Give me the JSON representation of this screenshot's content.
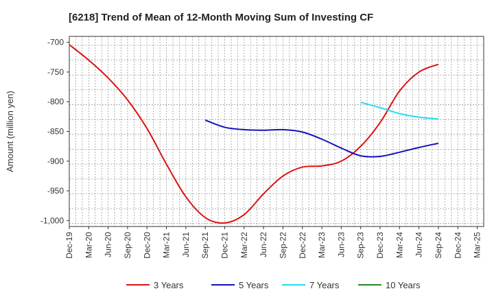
{
  "chart_data": {
    "type": "line",
    "title": "[6218]  Trend of Mean of 12-Month Moving Sum of Investing CF",
    "xlabel": "",
    "ylabel": "Amount (million yen)",
    "ylim": [
      -1010,
      -690
    ],
    "yticks": [
      -700,
      -750,
      -800,
      -850,
      -900,
      -950,
      -1000
    ],
    "ytick_labels": [
      "-700",
      "-750",
      "-800",
      "-850",
      "-900",
      "-950",
      "-1,000"
    ],
    "x_categories": [
      "Dec-19",
      "Mar-20",
      "Jun-20",
      "Sep-20",
      "Dec-20",
      "Mar-21",
      "Jun-21",
      "Sep-21",
      "Dec-21",
      "Mar-22",
      "Jun-22",
      "Sep-22",
      "Dec-22",
      "Mar-23",
      "Jun-23",
      "Sep-23",
      "Dec-23",
      "Mar-24",
      "Jun-24",
      "Sep-24",
      "Dec-24",
      "Mar-25"
    ],
    "grid": true,
    "legend_position": "bottom",
    "series": [
      {
        "name": "3 Years",
        "color": "#dd1111",
        "points": [
          [
            "Dec-19",
            -704
          ],
          [
            "Mar-20",
            -730
          ],
          [
            "Jun-20",
            -760
          ],
          [
            "Sep-20",
            -797
          ],
          [
            "Dec-20",
            -845
          ],
          [
            "Mar-21",
            -905
          ],
          [
            "Jun-21",
            -960
          ],
          [
            "Sep-21",
            -995
          ],
          [
            "Dec-21",
            -1004
          ],
          [
            "Mar-22",
            -990
          ],
          [
            "Jun-22",
            -955
          ],
          [
            "Sep-22",
            -925
          ],
          [
            "Dec-22",
            -910
          ],
          [
            "Mar-23",
            -908
          ],
          [
            "Jun-23",
            -900
          ],
          [
            "Sep-23",
            -875
          ],
          [
            "Dec-23",
            -835
          ],
          [
            "Mar-24",
            -782
          ],
          [
            "Jun-24",
            -750
          ],
          [
            "Sep-24",
            -737
          ]
        ]
      },
      {
        "name": "5 Years",
        "color": "#1111bb",
        "points": [
          [
            "Sep-21",
            -831
          ],
          [
            "Dec-21",
            -843
          ],
          [
            "Mar-22",
            -847
          ],
          [
            "Jun-22",
            -848
          ],
          [
            "Sep-22",
            -847
          ],
          [
            "Dec-22",
            -851
          ],
          [
            "Mar-23",
            -863
          ],
          [
            "Jun-23",
            -878
          ],
          [
            "Sep-23",
            -891
          ],
          [
            "Dec-23",
            -892
          ],
          [
            "Mar-24",
            -885
          ],
          [
            "Jun-24",
            -877
          ],
          [
            "Sep-24",
            -870
          ]
        ]
      },
      {
        "name": "7 Years",
        "color": "#22ddee",
        "points": [
          [
            "Sep-23",
            -801
          ],
          [
            "Dec-23",
            -810
          ],
          [
            "Mar-24",
            -820
          ],
          [
            "Jun-24",
            -826
          ],
          [
            "Sep-24",
            -829
          ]
        ]
      },
      {
        "name": "10 Years",
        "color": "#228822",
        "points": []
      }
    ]
  }
}
